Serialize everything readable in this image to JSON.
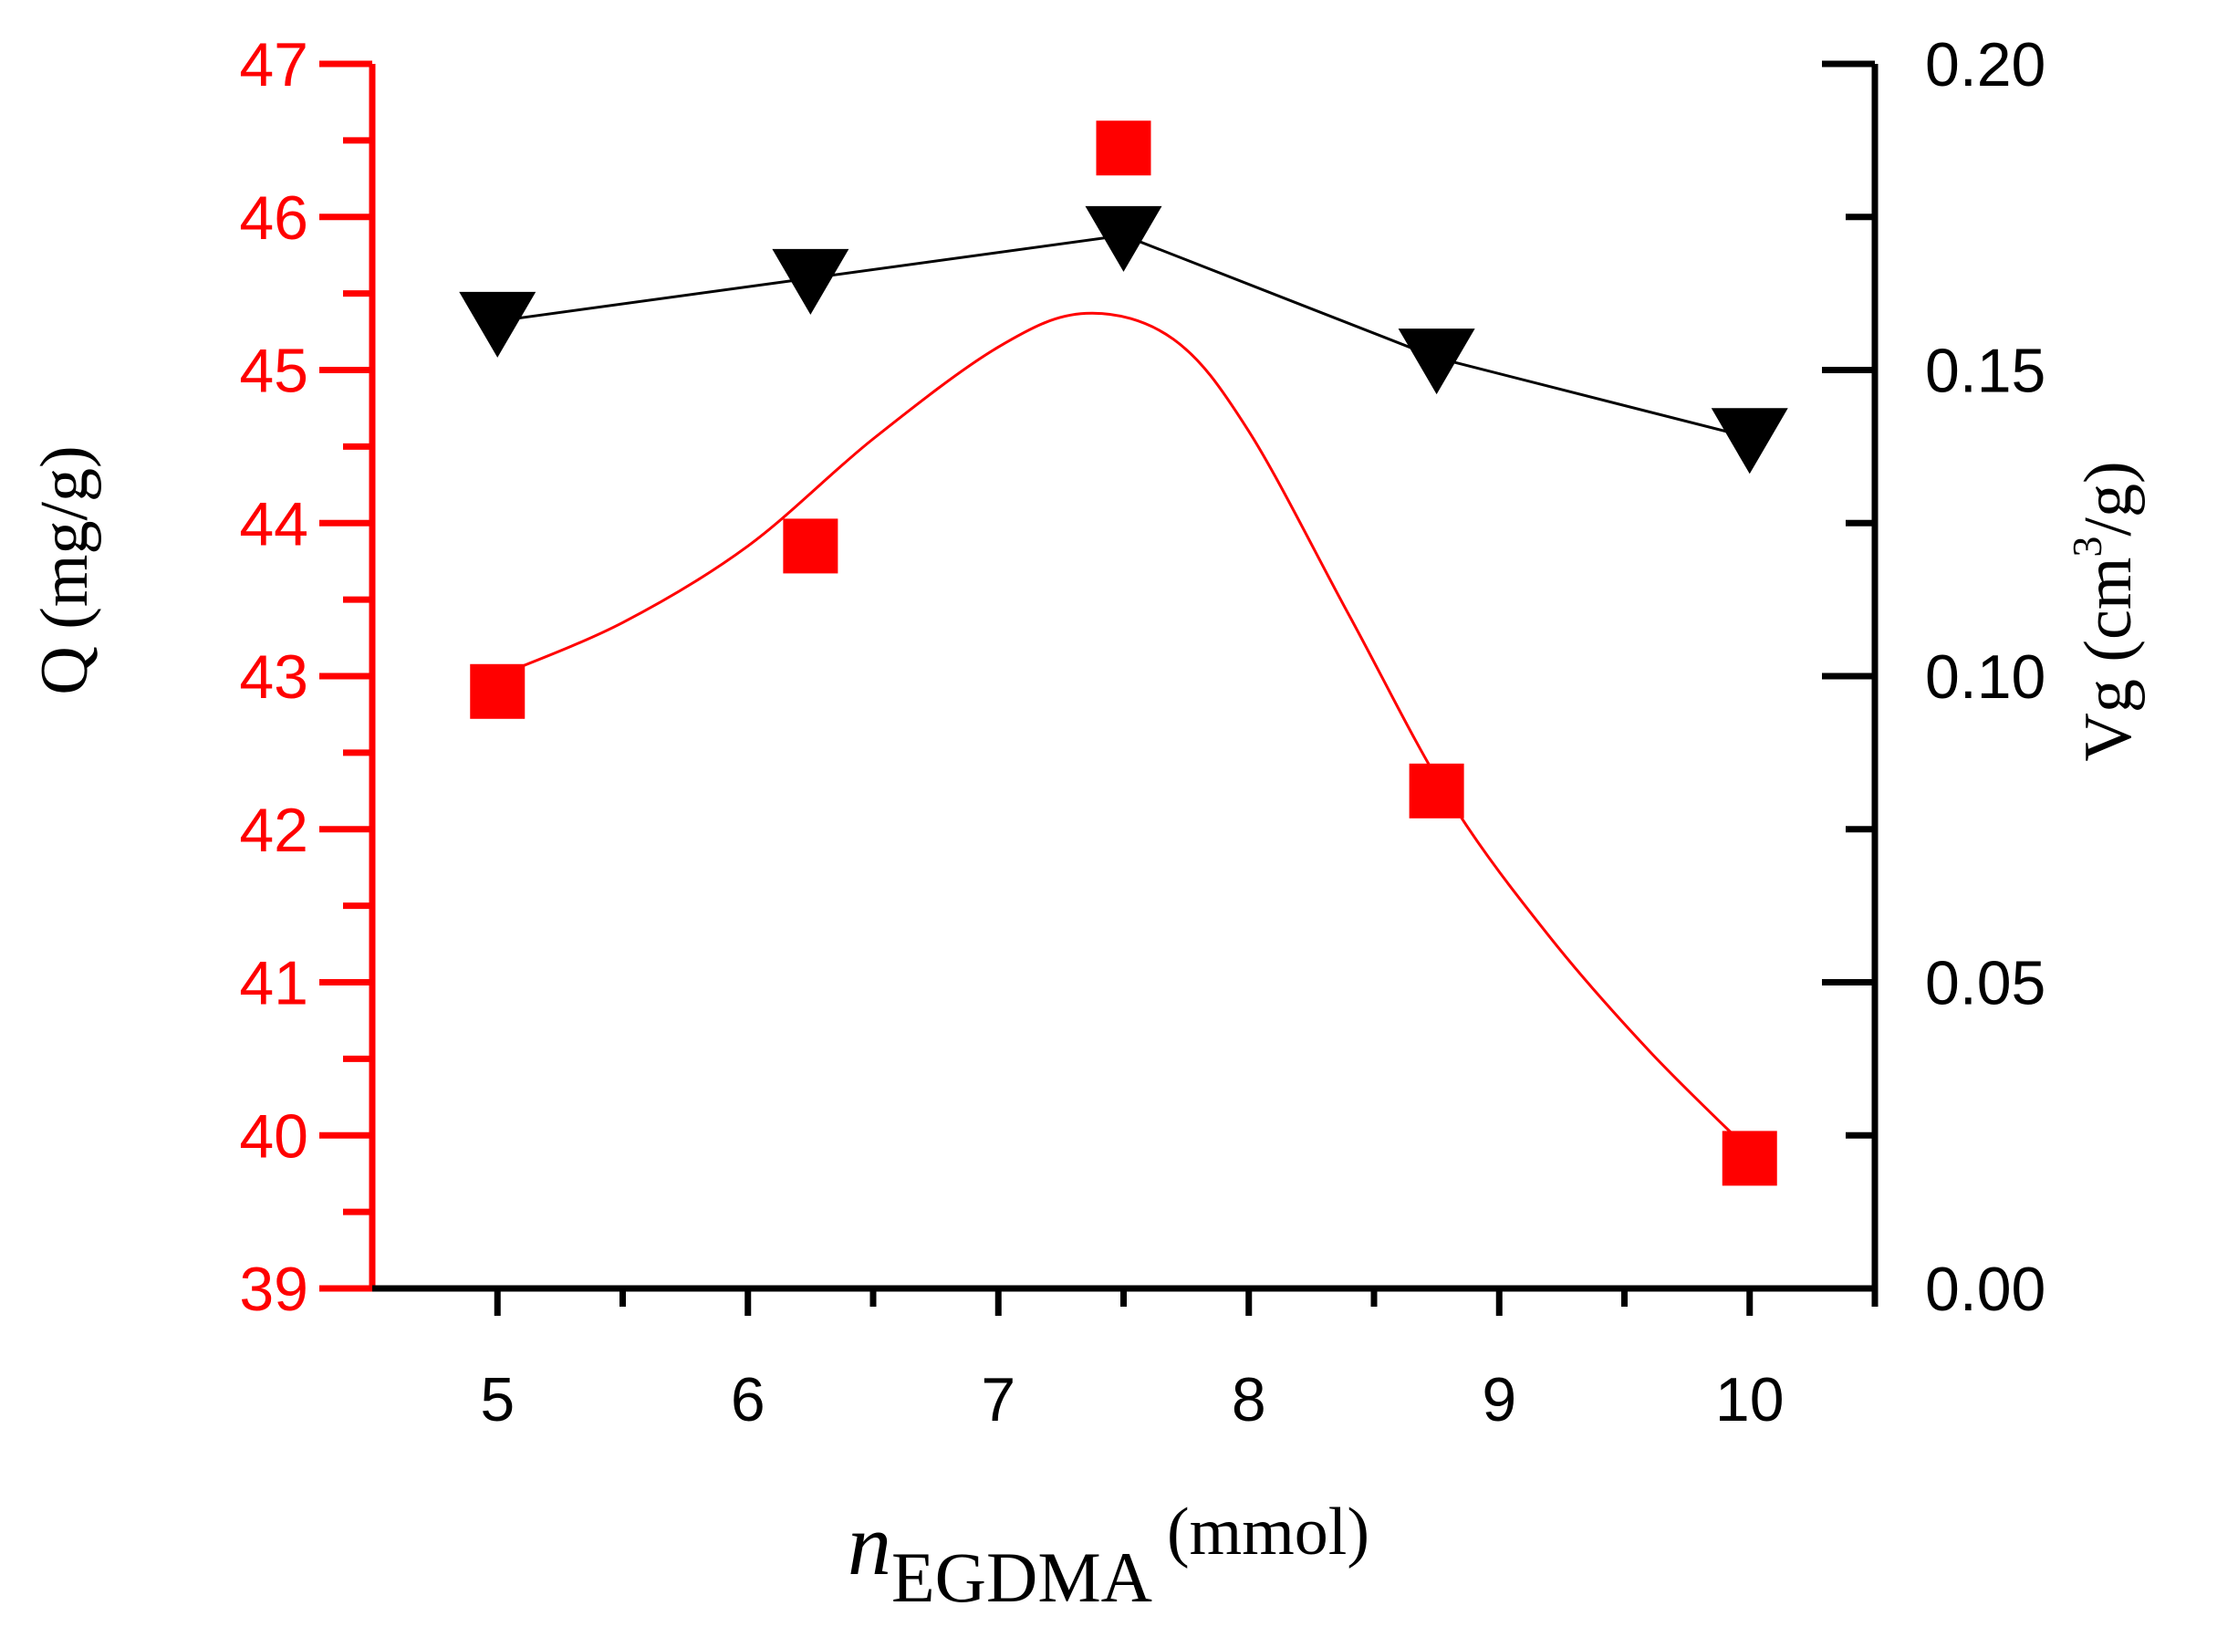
{
  "chart_data": {
    "type": "line",
    "x": [
      5,
      6.25,
      7.5,
      8.75,
      10
    ],
    "xlim": [
      4.5,
      10.5
    ],
    "xticks": [
      "5",
      "6",
      "7",
      "8",
      "9",
      "10"
    ],
    "xlabel": {
      "main": "n",
      "sub": "EGDMA",
      "unit": "(mmol)"
    },
    "y_left": {
      "label": "Q (mg/g)",
      "lim": [
        39,
        47
      ],
      "ticks": [
        "39",
        "40",
        "41",
        "42",
        "43",
        "44",
        "45",
        "46",
        "47"
      ],
      "color": "#ff0000"
    },
    "y_right": {
      "label_prefix": "Vg (cm",
      "label_sup": "3",
      "label_suffix": "/g)",
      "lim": [
        0.0,
        0.2
      ],
      "ticks": [
        "0.00",
        "0.05",
        "0.10",
        "0.15",
        "0.20"
      ],
      "color": "#000000"
    },
    "series": [
      {
        "name": "Q",
        "axis": "left",
        "marker": "square",
        "color": "#ff0000",
        "values": [
          42.9,
          43.85,
          46.45,
          42.25,
          39.85
        ],
        "fit_curve": {
          "x": [
            5.0,
            5.5,
            6.0,
            6.5,
            7.0,
            7.35,
            7.7,
            8.0,
            8.4,
            8.8,
            9.2,
            9.6,
            10.0
          ],
          "y": [
            43.0,
            43.35,
            43.85,
            44.55,
            45.15,
            45.37,
            45.2,
            44.6,
            43.4,
            42.2,
            41.3,
            40.55,
            39.9
          ]
        }
      },
      {
        "name": "Vg",
        "axis": "right",
        "marker": "triangle-down",
        "color": "#000000",
        "values": [
          0.158,
          0.165,
          0.172,
          0.152,
          0.139
        ]
      }
    ]
  }
}
